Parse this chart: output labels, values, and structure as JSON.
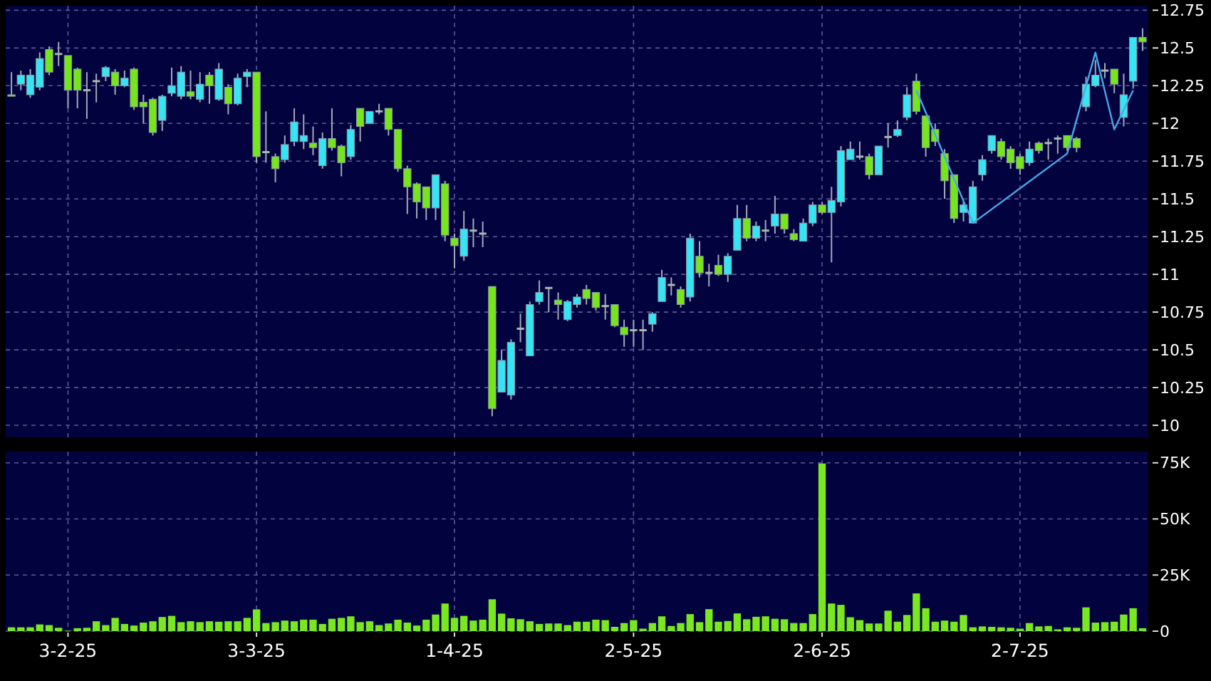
{
  "chart_data": [
    {
      "type": "candlestick",
      "categories": [
        null,
        null,
        null,
        null,
        null,
        null,
        null,
        null,
        null,
        null,
        null,
        null,
        null,
        null,
        null,
        null,
        null,
        null,
        null,
        null,
        null,
        null,
        null,
        null,
        null,
        null,
        null,
        null,
        null,
        null,
        null,
        null,
        null,
        null,
        null,
        null,
        null,
        null,
        null,
        null,
        null,
        null,
        null,
        null,
        null,
        null,
        null,
        null,
        null,
        null,
        null,
        null,
        null,
        null,
        null,
        null,
        null,
        null,
        null,
        null,
        null,
        null,
        null,
        null,
        null,
        null,
        null,
        null,
        null,
        null,
        null,
        null,
        null,
        null,
        null,
        null,
        null,
        null,
        null,
        null,
        null,
        null,
        null,
        null,
        null,
        null,
        null,
        null,
        null,
        null,
        null,
        null,
        null,
        null,
        null,
        null,
        null,
        null,
        null,
        null,
        null,
        null,
        null,
        null,
        null,
        null,
        null,
        null,
        null,
        null,
        null,
        null,
        null,
        null,
        null,
        null,
        null,
        null,
        null,
        null,
        null
      ],
      "series": [
        {
          "type": "candlestick",
          "ohlc": [
            [
              12.19,
              12.34,
              12.18,
              12.18
            ],
            [
              12.26,
              12.35,
              12.22,
              12.32
            ],
            [
              12.19,
              12.36,
              12.17,
              12.32
            ],
            [
              12.24,
              12.47,
              12.22,
              12.43
            ],
            [
              12.49,
              12.51,
              12.32,
              12.34
            ],
            [
              12.46,
              12.54,
              12.38,
              12.46
            ],
            [
              12.45,
              12.45,
              12.1,
              12.22
            ],
            [
              12.36,
              12.37,
              12.1,
              12.22
            ],
            [
              12.22,
              12.34,
              12.03,
              12.22
            ],
            [
              12.28,
              12.33,
              12.14,
              12.28
            ],
            [
              12.31,
              12.38,
              12.28,
              12.37
            ],
            [
              12.34,
              12.36,
              12.19,
              12.25
            ],
            [
              12.25,
              12.35,
              12.24,
              12.3
            ],
            [
              12.36,
              12.37,
              12.09,
              12.11
            ],
            [
              12.14,
              12.19,
              12.0,
              12.11
            ],
            [
              12.16,
              12.17,
              11.92,
              11.94
            ],
            [
              12.02,
              12.19,
              11.95,
              12.18
            ],
            [
              12.2,
              12.37,
              12.18,
              12.25
            ],
            [
              12.18,
              12.38,
              12.16,
              12.34
            ],
            [
              12.21,
              12.35,
              12.16,
              12.18
            ],
            [
              12.16,
              12.34,
              12.14,
              12.26
            ],
            [
              12.32,
              12.34,
              12.13,
              12.25
            ],
            [
              12.16,
              12.4,
              12.15,
              12.36
            ],
            [
              12.24,
              12.26,
              12.06,
              12.13
            ],
            [
              12.13,
              12.33,
              12.12,
              12.3
            ],
            [
              12.31,
              12.36,
              12.24,
              12.34
            ],
            [
              12.34,
              12.34,
              11.74,
              11.78
            ],
            [
              11.81,
              12.08,
              11.74,
              11.81
            ],
            [
              11.78,
              11.8,
              11.61,
              11.7
            ],
            [
              11.76,
              11.92,
              11.74,
              11.86
            ],
            [
              11.88,
              12.1,
              11.85,
              12.01
            ],
            [
              11.88,
              12.06,
              11.83,
              11.92
            ],
            [
              11.87,
              11.98,
              11.79,
              11.84
            ],
            [
              11.72,
              11.94,
              11.7,
              11.9
            ],
            [
              11.9,
              12.1,
              11.82,
              11.84
            ],
            [
              11.85,
              11.86,
              11.65,
              11.74
            ],
            [
              11.78,
              11.99,
              11.76,
              11.96
            ],
            [
              12.1,
              12.1,
              11.88,
              11.98
            ],
            [
              12.0,
              12.08,
              12.0,
              12.08
            ],
            [
              12.08,
              12.13,
              12.06,
              12.08
            ],
            [
              12.1,
              12.1,
              11.92,
              11.96
            ],
            [
              11.96,
              11.96,
              11.68,
              11.7
            ],
            [
              11.7,
              11.72,
              11.4,
              11.58
            ],
            [
              11.6,
              11.61,
              11.37,
              11.48
            ],
            [
              11.58,
              11.58,
              11.36,
              11.44
            ],
            [
              11.44,
              11.66,
              11.36,
              11.66
            ],
            [
              11.6,
              11.62,
              11.22,
              11.26
            ],
            [
              11.24,
              11.27,
              11.04,
              11.19
            ],
            [
              11.12,
              11.42,
              11.09,
              11.3
            ],
            [
              11.29,
              11.37,
              11.18,
              11.29
            ],
            [
              11.27,
              11.35,
              11.18,
              11.27
            ],
            [
              10.92,
              10.92,
              10.06,
              10.11
            ],
            [
              10.22,
              10.5,
              10.22,
              10.43
            ],
            [
              10.2,
              10.57,
              10.17,
              10.55
            ],
            [
              10.64,
              10.74,
              10.55,
              10.64
            ],
            [
              10.46,
              10.82,
              10.46,
              10.8
            ],
            [
              10.82,
              10.96,
              10.8,
              10.88
            ],
            [
              10.91,
              10.91,
              10.75,
              10.91
            ],
            [
              10.83,
              10.88,
              10.7,
              10.8
            ],
            [
              10.7,
              10.83,
              10.69,
              10.82
            ],
            [
              10.8,
              10.87,
              10.78,
              10.85
            ],
            [
              10.9,
              10.93,
              10.8,
              10.84
            ],
            [
              10.88,
              10.88,
              10.76,
              10.78
            ],
            [
              10.79,
              10.87,
              10.7,
              10.79
            ],
            [
              10.8,
              10.8,
              10.65,
              10.66
            ],
            [
              10.65,
              10.7,
              10.52,
              10.6
            ],
            [
              10.63,
              10.7,
              10.52,
              10.63
            ],
            [
              10.63,
              10.7,
              10.5,
              10.63
            ],
            [
              10.67,
              10.75,
              10.62,
              10.74
            ],
            [
              10.82,
              11.03,
              10.82,
              10.98
            ],
            [
              10.93,
              10.98,
              10.86,
              10.93
            ],
            [
              10.9,
              10.92,
              10.78,
              10.8
            ],
            [
              10.85,
              11.27,
              10.82,
              11.24
            ],
            [
              11.12,
              11.22,
              10.98,
              11.01
            ],
            [
              11.01,
              11.07,
              10.92,
              11.01
            ],
            [
              11.06,
              11.13,
              10.99,
              11.0
            ],
            [
              11.0,
              11.14,
              10.95,
              11.12
            ],
            [
              11.16,
              11.46,
              11.16,
              11.37
            ],
            [
              11.37,
              11.46,
              11.22,
              11.24
            ],
            [
              11.24,
              11.35,
              11.22,
              11.32
            ],
            [
              11.29,
              11.36,
              11.22,
              11.29
            ],
            [
              11.32,
              11.52,
              11.27,
              11.4
            ],
            [
              11.4,
              11.4,
              11.27,
              11.3
            ],
            [
              11.27,
              11.3,
              11.22,
              11.23
            ],
            [
              11.22,
              11.37,
              11.22,
              11.34
            ],
            [
              11.34,
              11.48,
              11.32,
              11.46
            ],
            [
              11.46,
              11.48,
              11.4,
              11.41
            ],
            [
              11.41,
              11.58,
              11.08,
              11.49
            ],
            [
              11.48,
              11.85,
              11.45,
              11.82
            ],
            [
              11.76,
              11.88,
              11.76,
              11.83
            ],
            [
              11.78,
              11.88,
              11.76,
              11.78
            ],
            [
              11.78,
              11.8,
              11.63,
              11.66
            ],
            [
              11.66,
              11.85,
              11.66,
              11.85
            ],
            [
              11.91,
              12.0,
              11.84,
              11.91
            ],
            [
              11.92,
              12.02,
              11.91,
              11.96
            ],
            [
              12.04,
              12.24,
              12.02,
              12.19
            ],
            [
              12.28,
              12.33,
              12.06,
              12.08
            ],
            [
              12.05,
              12.05,
              11.78,
              11.84
            ],
            [
              11.96,
              12.0,
              11.85,
              11.88
            ],
            [
              11.8,
              11.83,
              11.5,
              11.62
            ],
            [
              11.66,
              11.66,
              11.34,
              11.37
            ],
            [
              11.41,
              11.48,
              11.35,
              11.46
            ],
            [
              11.34,
              11.62,
              11.34,
              11.58
            ],
            [
              11.66,
              11.79,
              11.62,
              11.76
            ],
            [
              11.82,
              11.92,
              11.8,
              11.92
            ],
            [
              11.88,
              11.9,
              11.76,
              11.78
            ],
            [
              11.83,
              11.85,
              11.7,
              11.74
            ],
            [
              11.78,
              11.8,
              11.66,
              11.7
            ],
            [
              11.74,
              11.88,
              11.72,
              11.83
            ],
            [
              11.87,
              11.88,
              11.8,
              11.82
            ],
            [
              11.87,
              11.9,
              11.76,
              11.87
            ],
            [
              11.9,
              11.92,
              11.8,
              11.9
            ],
            [
              11.92,
              11.92,
              11.82,
              11.84
            ],
            [
              11.9,
              11.91,
              11.81,
              11.84
            ],
            [
              12.11,
              12.31,
              12.08,
              12.26
            ],
            [
              12.25,
              12.42,
              12.24,
              12.32
            ],
            [
              12.35,
              12.4,
              12.3,
              12.35
            ],
            [
              12.36,
              12.36,
              12.2,
              12.26
            ],
            [
              12.04,
              12.33,
              11.98,
              12.19
            ],
            [
              12.28,
              12.57,
              12.23,
              12.57
            ],
            [
              12.57,
              12.63,
              12.48,
              12.54
            ]
          ],
          "colors": [
            "#76e51c",
            "#36e4f4",
            "#36e4f4",
            "#36e4f4",
            "#76e51c",
            "#a8b8b0",
            "#76e51c",
            "#76e51c",
            "#a8b8b0",
            "#a8b8b0",
            "#36e4f4",
            "#76e51c",
            "#36e4f4",
            "#76e51c",
            "#76e51c",
            "#76e51c",
            "#36e4f4",
            "#36e4f4",
            "#36e4f4",
            "#76e51c",
            "#36e4f4",
            "#76e51c",
            "#36e4f4",
            "#76e51c",
            "#36e4f4",
            "#36e4f4",
            "#76e51c",
            "#a8b8b0",
            "#76e51c",
            "#36e4f4",
            "#36e4f4",
            "#36e4f4",
            "#76e51c",
            "#36e4f4",
            "#76e51c",
            "#76e51c",
            "#36e4f4",
            "#76e51c",
            "#36e4f4",
            "#a8b8b0",
            "#76e51c",
            "#76e51c",
            "#76e51c",
            "#76e51c",
            "#76e51c",
            "#36e4f4",
            "#76e51c",
            "#76e51c",
            "#36e4f4",
            "#a8b8b0",
            "#a8b8b0",
            "#76e51c",
            "#36e4f4",
            "#36e4f4",
            "#a8b8b0",
            "#36e4f4",
            "#36e4f4",
            "#a8b8b0",
            "#76e51c",
            "#36e4f4",
            "#36e4f4",
            "#76e51c",
            "#76e51c",
            "#a8b8b0",
            "#76e51c",
            "#76e51c",
            "#a8b8b0",
            "#a8b8b0",
            "#36e4f4",
            "#36e4f4",
            "#a8b8b0",
            "#76e51c",
            "#36e4f4",
            "#76e51c",
            "#a8b8b0",
            "#76e51c",
            "#36e4f4",
            "#36e4f4",
            "#76e51c",
            "#36e4f4",
            "#a8b8b0",
            "#36e4f4",
            "#76e51c",
            "#76e51c",
            "#36e4f4",
            "#36e4f4",
            "#76e51c",
            "#36e4f4",
            "#36e4f4",
            "#36e4f4",
            "#a8b8b0",
            "#76e51c",
            "#36e4f4",
            "#a8b8b0",
            "#36e4f4",
            "#36e4f4",
            "#76e51c",
            "#76e51c",
            "#76e51c",
            "#76e51c",
            "#76e51c",
            "#36e4f4",
            "#36e4f4",
            "#36e4f4",
            "#36e4f4",
            "#76e51c",
            "#76e51c",
            "#76e51c",
            "#36e4f4",
            "#76e51c",
            "#a8b8b0",
            "#a8b8b0",
            "#76e51c",
            "#76e51c",
            "#36e4f4",
            "#36e4f4",
            "#a8b8b0",
            "#76e51c",
            "#36e4f4",
            "#36e4f4",
            "#76e51c"
          ]
        },
        {
          "type": "line",
          "color": "#4aa8e8",
          "values": [
            null,
            null,
            null,
            null,
            null,
            null,
            null,
            null,
            null,
            null,
            null,
            null,
            null,
            null,
            null,
            null,
            null,
            null,
            null,
            null,
            null,
            null,
            null,
            null,
            null,
            null,
            null,
            null,
            null,
            null,
            null,
            null,
            null,
            null,
            null,
            null,
            null,
            null,
            null,
            null,
            null,
            null,
            null,
            null,
            null,
            null,
            null,
            null,
            null,
            null,
            null,
            null,
            null,
            null,
            null,
            null,
            null,
            null,
            null,
            null,
            null,
            null,
            null,
            null,
            null,
            null,
            null,
            null,
            null,
            null,
            null,
            null,
            null,
            null,
            null,
            null,
            null,
            null,
            null,
            null,
            null,
            null,
            null,
            null,
            null,
            null,
            null,
            null,
            null,
            null,
            null,
            null,
            null,
            null,
            null,
            null,
            12.22,
            null,
            null,
            null,
            null,
            null,
            11.34,
            null,
            null,
            null,
            null,
            null,
            null,
            null,
            null,
            null,
            11.8,
            null,
            null,
            12.47,
            null,
            11.96,
            null,
            12.22,
            null
          ]
        }
      ],
      "ylim": [
        9.92,
        12.78
      ],
      "yticks": [
        10,
        10.25,
        10.5,
        10.75,
        11,
        11.25,
        11.5,
        11.75,
        12,
        12.25,
        12.5,
        12.75
      ],
      "grid": true,
      "tick_labels": "y"
    },
    {
      "type": "bar",
      "categories": [
        null,
        null,
        null,
        null,
        null,
        null,
        "3-2-25",
        null,
        null,
        null,
        null,
        null,
        null,
        null,
        null,
        null,
        null,
        null,
        null,
        null,
        null,
        null,
        null,
        null,
        null,
        null,
        "3-3-25",
        null,
        null,
        null,
        null,
        null,
        null,
        null,
        null,
        null,
        null,
        null,
        null,
        null,
        null,
        null,
        null,
        null,
        null,
        null,
        null,
        "1-4-25",
        null,
        null,
        null,
        null,
        null,
        null,
        null,
        null,
        null,
        null,
        null,
        null,
        null,
        null,
        null,
        null,
        null,
        null,
        "2-5-25",
        null,
        null,
        null,
        null,
        null,
        null,
        null,
        null,
        null,
        null,
        null,
        null,
        null,
        null,
        null,
        null,
        null,
        null,
        null,
        "2-6-25",
        null,
        null,
        null,
        null,
        null,
        null,
        null,
        null,
        null,
        null,
        null,
        null,
        null,
        null,
        null,
        null,
        null,
        null,
        null,
        null,
        "2-7-25",
        null,
        null,
        null,
        null,
        null,
        null,
        null,
        null,
        null,
        null,
        null,
        null,
        null
      ],
      "values": [
        1700,
        1700,
        1700,
        3000,
        2700,
        1500,
        200,
        1300,
        1500,
        4400,
        2700,
        5900,
        3200,
        2500,
        3800,
        4400,
        6300,
        6800,
        4000,
        4400,
        4000,
        4400,
        4200,
        4400,
        4400,
        5900,
        9700,
        3600,
        4000,
        4700,
        4400,
        5100,
        5100,
        3200,
        5500,
        5900,
        6600,
        4000,
        4400,
        2700,
        3400,
        5100,
        3800,
        2500,
        5100,
        7400,
        12300,
        5900,
        6800,
        4700,
        5100,
        14200,
        7800,
        5700,
        5300,
        4400,
        3200,
        3400,
        3400,
        2700,
        4200,
        4200,
        5100,
        4900,
        1900,
        3600,
        4900,
        1100,
        3600,
        6600,
        2300,
        3600,
        7600,
        4000,
        9800,
        4200,
        4500,
        7900,
        5300,
        6400,
        6600,
        5500,
        5300,
        3600,
        3600,
        7600,
        74700,
        12300,
        11700,
        6200,
        4900,
        3400,
        3400,
        9100,
        4200,
        7200,
        16800,
        10200,
        4200,
        4700,
        4200,
        7200,
        1700,
        2100,
        1900,
        1700,
        1500,
        1100,
        3600,
        2100,
        2300,
        800,
        1700,
        1500,
        10600,
        3800,
        4000,
        4200,
        7400,
        10200,
        1300
      ],
      "color": "#7ae820",
      "ylim": [
        0,
        80000
      ],
      "yticks": [
        0,
        {
          "value": 25000,
          "label": "25K"
        },
        {
          "value": 50000,
          "label": "50K"
        },
        {
          "value": 75000,
          "label": "75K"
        }
      ],
      "grid": true
    }
  ]
}
